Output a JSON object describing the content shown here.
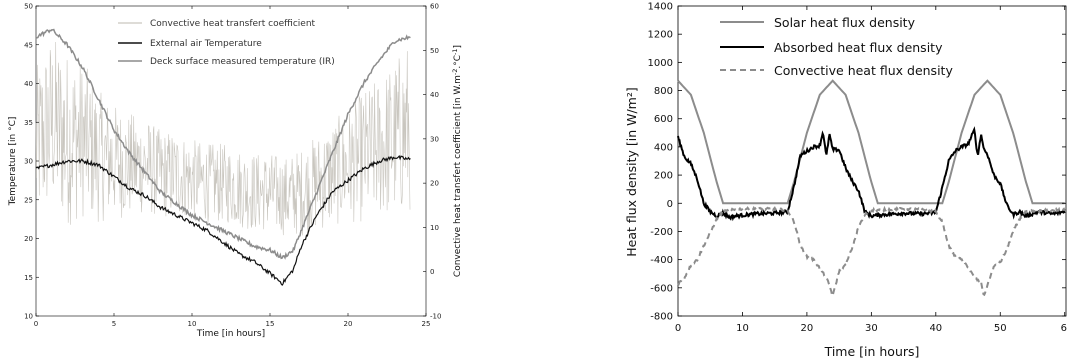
{
  "chart_data": [
    {
      "type": "line",
      "xlabel": "Time [in hours]",
      "ylabel": "Temperature [in °C]",
      "y2label": "Convective heat transfert coefficient [in W.m",
      "y2label_sup1": "-2",
      "y2label_mid": ".°C",
      "y2label_sup2": "-1",
      "y2label_end": "]",
      "xlim": [
        0,
        25
      ],
      "ylim": [
        10,
        50
      ],
      "y2lim": [
        -10,
        60
      ],
      "xticks": [
        "0",
        "5",
        "10",
        "15",
        "20",
        "25"
      ],
      "yticks": [
        "10",
        "15",
        "20",
        "25",
        "30",
        "35",
        "40",
        "45",
        "50"
      ],
      "y2ticks": [
        "-10",
        "0",
        "10",
        "20",
        "30",
        "40",
        "50",
        "60"
      ],
      "legend_position": "top-left",
      "series": [
        {
          "name": "Convective heat transfert coefficient",
          "axis": "right",
          "color": "#c9c6bf",
          "style": "noisy",
          "x": [
            0,
            1,
            2,
            3,
            4,
            5,
            6,
            7,
            8,
            9,
            10,
            11,
            12,
            13,
            14,
            15,
            16,
            17,
            18,
            19,
            20,
            21,
            22,
            23,
            24
          ],
          "values": [
            28,
            34,
            30,
            30,
            26,
            25,
            24,
            24,
            22,
            22,
            21,
            20,
            20,
            19,
            18,
            18,
            17,
            18,
            20,
            22,
            24,
            26,
            28,
            30,
            33
          ],
          "spread": [
            18,
            20,
            20,
            18,
            15,
            13,
            12,
            11,
            10,
            10,
            9,
            9,
            9,
            9,
            9,
            9,
            9,
            10,
            11,
            12,
            13,
            15,
            16,
            18,
            20
          ]
        },
        {
          "name": "External air Temperature",
          "axis": "left",
          "color": "#111111",
          "x": [
            0,
            1,
            2,
            3,
            4,
            5,
            6,
            7,
            8,
            9,
            10,
            11,
            12,
            13,
            14,
            15,
            15.8,
            16.5,
            17,
            18,
            19,
            20,
            21,
            22,
            23,
            24
          ],
          "values": [
            29,
            29.5,
            30,
            30,
            29.5,
            28,
            26.5,
            25.5,
            24,
            23,
            22,
            21,
            19.5,
            18,
            17,
            15.5,
            14.2,
            16,
            19,
            23,
            26,
            27.5,
            29,
            30,
            30.5,
            30.2
          ]
        },
        {
          "name": "Deck surface measured temperature (IR)",
          "axis": "left",
          "color": "#8c8c8c",
          "x": [
            0,
            0.5,
            1,
            2,
            3,
            4,
            5,
            6,
            7,
            8,
            9,
            10,
            11,
            12,
            13,
            14,
            15,
            15.8,
            16.5,
            17,
            18,
            19,
            20,
            21,
            22,
            23,
            24
          ],
          "values": [
            46,
            46.5,
            47,
            45,
            42,
            38,
            34,
            31,
            28.5,
            26,
            24.5,
            23,
            22,
            21,
            20,
            19,
            18.5,
            17.5,
            18.5,
            21,
            26,
            31,
            36,
            40,
            43,
            45.5,
            46
          ]
        }
      ]
    },
    {
      "type": "line",
      "xlabel": "Time [in hours]",
      "ylabel": "Heat flux density [in W/m²]",
      "xlim": [
        0,
        60
      ],
      "ylim": [
        -800,
        1400
      ],
      "xticks": [
        "0",
        "10",
        "20",
        "30",
        "40",
        "50",
        "6"
      ],
      "yticks": [
        "-800",
        "-600",
        "-400",
        "-200",
        "0",
        "200",
        "400",
        "600",
        "800",
        "1000",
        "1200",
        "1400"
      ],
      "legend_position": "top-left",
      "series": [
        {
          "name": "Solar heat flux density",
          "color": "#8c8c8c",
          "x": [
            0,
            2,
            4,
            6,
            7,
            8,
            10,
            12,
            14,
            16,
            17,
            18,
            20,
            22,
            24,
            26,
            28,
            30,
            31,
            32,
            34,
            36,
            38,
            40,
            41,
            42,
            44,
            46,
            48,
            50,
            52,
            54,
            55,
            56,
            58,
            60
          ],
          "values": [
            870,
            770,
            500,
            150,
            0,
            0,
            0,
            0,
            0,
            0,
            0,
            150,
            500,
            770,
            870,
            770,
            500,
            150,
            0,
            0,
            0,
            0,
            0,
            0,
            0,
            150,
            500,
            770,
            870,
            770,
            500,
            150,
            0,
            0,
            0,
            0
          ]
        },
        {
          "name": "Absorbed heat flux density",
          "color": "#000000",
          "x": [
            0,
            1,
            2,
            3,
            4,
            5,
            6,
            7,
            8,
            9,
            12,
            15,
            17,
            18,
            19,
            20,
            21,
            22,
            22.5,
            23,
            23.5,
            24,
            25,
            26,
            27,
            28,
            29,
            30,
            32,
            35,
            38,
            40,
            41,
            42,
            43,
            44,
            45,
            46,
            46.5,
            47,
            47.5,
            48,
            49,
            50,
            51,
            52,
            53,
            54,
            56,
            58,
            60
          ],
          "values": [
            470,
            330,
            280,
            170,
            0,
            -60,
            -90,
            -70,
            -100,
            -90,
            -75,
            -70,
            -60,
            120,
            340,
            370,
            400,
            410,
            510,
            330,
            490,
            380,
            380,
            250,
            160,
            90,
            -60,
            -90,
            -80,
            -70,
            -75,
            -65,
            110,
            300,
            370,
            400,
            420,
            520,
            330,
            490,
            380,
            350,
            200,
            140,
            -10,
            -80,
            -60,
            -90,
            -60,
            -75,
            -60
          ]
        },
        {
          "name": "Convective heat flux density",
          "color": "#8c8c8c",
          "style": "dashed",
          "x": [
            0,
            1,
            2,
            3,
            4,
            5,
            6,
            7,
            8,
            9,
            10,
            12,
            15,
            17,
            18,
            19,
            20,
            21,
            22,
            23,
            23.5,
            24,
            25,
            26,
            27,
            28,
            29,
            30,
            32,
            35,
            38,
            40,
            41,
            42,
            43,
            44,
            45,
            46,
            47,
            47.5,
            48,
            49,
            50,
            51,
            52,
            53,
            54,
            56,
            58,
            60
          ],
          "values": [
            -570,
            -530,
            -440,
            -400,
            -300,
            -210,
            -110,
            -60,
            -50,
            -45,
            -40,
            -40,
            -40,
            -50,
            -130,
            -300,
            -380,
            -400,
            -460,
            -530,
            -580,
            -660,
            -480,
            -440,
            -320,
            -170,
            -80,
            -50,
            -45,
            -40,
            -45,
            -60,
            -130,
            -300,
            -380,
            -400,
            -450,
            -530,
            -560,
            -660,
            -580,
            -450,
            -420,
            -330,
            -200,
            -110,
            -60,
            -55,
            -50,
            -45
          ]
        }
      ]
    }
  ]
}
